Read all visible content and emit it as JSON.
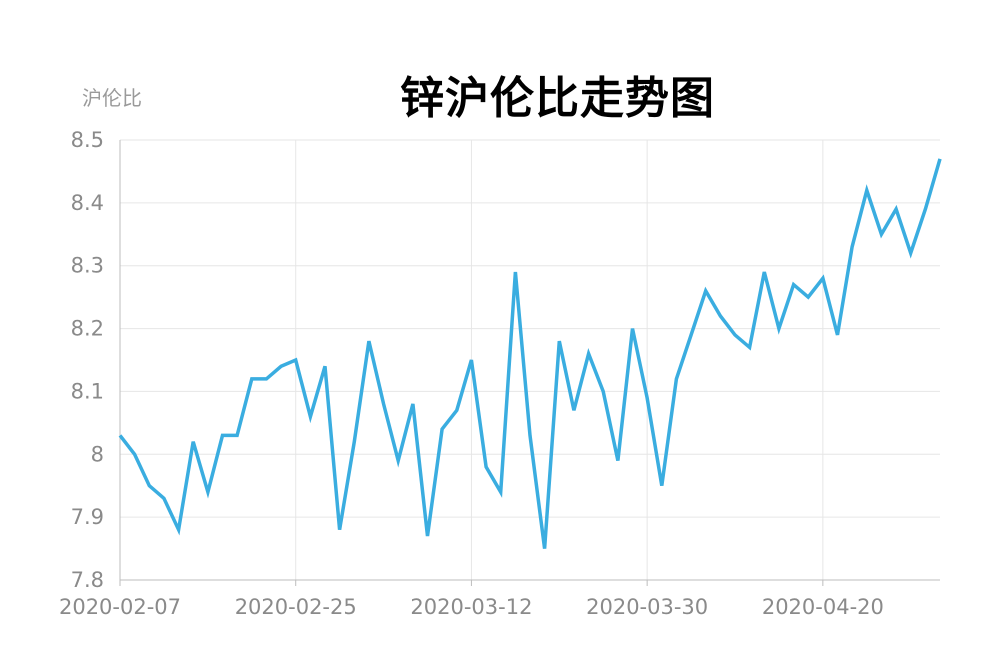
{
  "chart_data": {
    "type": "line",
    "title": "锌沪伦比走势图",
    "ylabel": "沪伦比",
    "xlabel": "",
    "ylim": [
      7.8,
      8.5
    ],
    "yticks": [
      "7.8",
      "7.9",
      "8",
      "8.1",
      "8.2",
      "8.3",
      "8.4",
      "8.5"
    ],
    "xtick_labels": [
      "2020-02-07",
      "2020-02-25",
      "2020-03-12",
      "2020-03-30",
      "2020-04-20"
    ],
    "grid": true,
    "line_color": "#3aade0",
    "series": [
      {
        "values": [
          8.03,
          8.0,
          7.95,
          7.93,
          7.88,
          8.02,
          7.94,
          8.03,
          8.03,
          8.12,
          8.12,
          8.14,
          8.15,
          8.06,
          8.14,
          7.88,
          8.02,
          8.18,
          8.08,
          7.99,
          8.08,
          7.87,
          8.04,
          8.07,
          8.15,
          7.98,
          7.94,
          8.29,
          8.03,
          7.85,
          8.18,
          8.07,
          8.16,
          8.1,
          7.99,
          8.2,
          8.09,
          7.95,
          8.12,
          8.19,
          8.26,
          8.22,
          8.19,
          8.17,
          8.29,
          8.2,
          8.27,
          8.25,
          8.28,
          8.19,
          8.33,
          8.42,
          8.35,
          8.39,
          8.32,
          8.39,
          8.47
        ]
      }
    ]
  }
}
